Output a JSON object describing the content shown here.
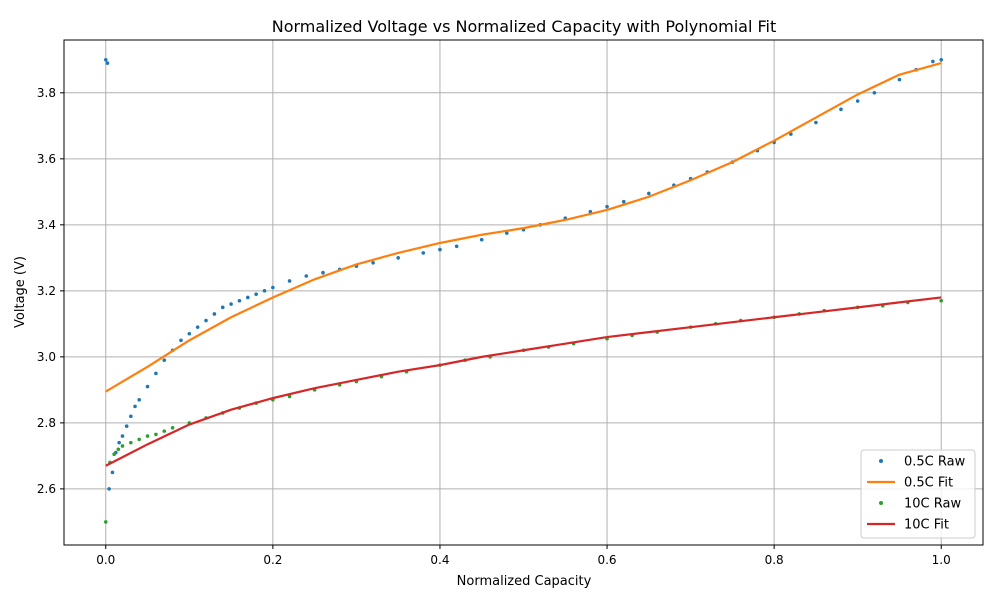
{
  "chart_data": {
    "type": "scatter",
    "title": "Normalized Voltage vs Normalized Capacity with Polynomial Fit",
    "xlabel": "Normalized Capacity",
    "ylabel": "Voltage (V)",
    "xlim": [
      -0.05,
      1.05
    ],
    "ylim": [
      2.43,
      3.96
    ],
    "xticks": [
      "0.0",
      "0.2",
      "0.4",
      "0.6",
      "0.8",
      "1.0"
    ],
    "yticks": [
      "2.6",
      "2.8",
      "3.0",
      "3.2",
      "3.4",
      "3.6",
      "3.8"
    ],
    "grid": true,
    "legend_position": "lower-right",
    "series": [
      {
        "name": "0.5C Raw",
        "kind": "points",
        "color": "#1f77b4",
        "x": [
          0.0,
          0.002,
          0.004,
          0.008,
          0.012,
          0.016,
          0.02,
          0.025,
          0.03,
          0.035,
          0.04,
          0.05,
          0.06,
          0.07,
          0.08,
          0.09,
          0.1,
          0.11,
          0.12,
          0.13,
          0.14,
          0.15,
          0.16,
          0.17,
          0.18,
          0.19,
          0.2,
          0.22,
          0.24,
          0.26,
          0.28,
          0.3,
          0.32,
          0.35,
          0.38,
          0.4,
          0.42,
          0.45,
          0.48,
          0.5,
          0.52,
          0.55,
          0.58,
          0.6,
          0.62,
          0.65,
          0.68,
          0.7,
          0.72,
          0.75,
          0.78,
          0.8,
          0.82,
          0.85,
          0.88,
          0.9,
          0.92,
          0.95,
          0.97,
          0.99,
          1.0
        ],
        "y": [
          3.9,
          3.89,
          2.6,
          2.65,
          2.71,
          2.74,
          2.76,
          2.79,
          2.82,
          2.85,
          2.87,
          2.91,
          2.95,
          2.99,
          3.02,
          3.05,
          3.07,
          3.09,
          3.11,
          3.13,
          3.15,
          3.16,
          3.17,
          3.18,
          3.19,
          3.2,
          3.21,
          3.23,
          3.245,
          3.255,
          3.265,
          3.275,
          3.285,
          3.3,
          3.315,
          3.325,
          3.335,
          3.355,
          3.375,
          3.385,
          3.4,
          3.42,
          3.44,
          3.455,
          3.47,
          3.495,
          3.52,
          3.54,
          3.56,
          3.59,
          3.625,
          3.65,
          3.675,
          3.71,
          3.75,
          3.775,
          3.8,
          3.84,
          3.87,
          3.895,
          3.9
        ]
      },
      {
        "name": "0.5C Fit",
        "kind": "line",
        "color": "#ff7f0e",
        "x": [
          0.0,
          0.05,
          0.1,
          0.15,
          0.2,
          0.25,
          0.3,
          0.35,
          0.4,
          0.45,
          0.5,
          0.55,
          0.6,
          0.65,
          0.7,
          0.75,
          0.8,
          0.85,
          0.9,
          0.95,
          1.0
        ],
        "y": [
          2.895,
          2.97,
          3.05,
          3.12,
          3.18,
          3.235,
          3.28,
          3.315,
          3.345,
          3.37,
          3.39,
          3.415,
          3.445,
          3.485,
          3.535,
          3.59,
          3.655,
          3.725,
          3.795,
          3.855,
          3.89
        ]
      },
      {
        "name": "10C Raw",
        "kind": "points",
        "color": "#2ca02c",
        "x": [
          0.0,
          0.005,
          0.01,
          0.015,
          0.02,
          0.03,
          0.04,
          0.05,
          0.06,
          0.07,
          0.08,
          0.1,
          0.12,
          0.14,
          0.16,
          0.18,
          0.2,
          0.22,
          0.25,
          0.28,
          0.3,
          0.33,
          0.36,
          0.4,
          0.43,
          0.46,
          0.5,
          0.53,
          0.56,
          0.6,
          0.63,
          0.66,
          0.7,
          0.73,
          0.76,
          0.8,
          0.83,
          0.86,
          0.9,
          0.93,
          0.96,
          1.0
        ],
        "y": [
          2.5,
          2.68,
          2.705,
          2.72,
          2.73,
          2.74,
          2.75,
          2.76,
          2.765,
          2.775,
          2.785,
          2.8,
          2.815,
          2.83,
          2.845,
          2.86,
          2.87,
          2.88,
          2.9,
          2.915,
          2.925,
          2.94,
          2.955,
          2.975,
          2.99,
          3.0,
          3.02,
          3.03,
          3.04,
          3.055,
          3.065,
          3.075,
          3.09,
          3.1,
          3.11,
          3.12,
          3.13,
          3.14,
          3.15,
          3.155,
          3.165,
          3.17
        ]
      },
      {
        "name": "10C Fit",
        "kind": "line",
        "color": "#d62728",
        "x": [
          0.0,
          0.05,
          0.1,
          0.15,
          0.2,
          0.25,
          0.3,
          0.35,
          0.4,
          0.45,
          0.5,
          0.55,
          0.6,
          0.65,
          0.7,
          0.75,
          0.8,
          0.85,
          0.9,
          0.95,
          1.0
        ],
        "y": [
          2.67,
          2.735,
          2.795,
          2.84,
          2.875,
          2.905,
          2.93,
          2.955,
          2.975,
          3.0,
          3.02,
          3.04,
          3.06,
          3.075,
          3.09,
          3.105,
          3.12,
          3.135,
          3.15,
          3.165,
          3.18
        ]
      }
    ]
  }
}
